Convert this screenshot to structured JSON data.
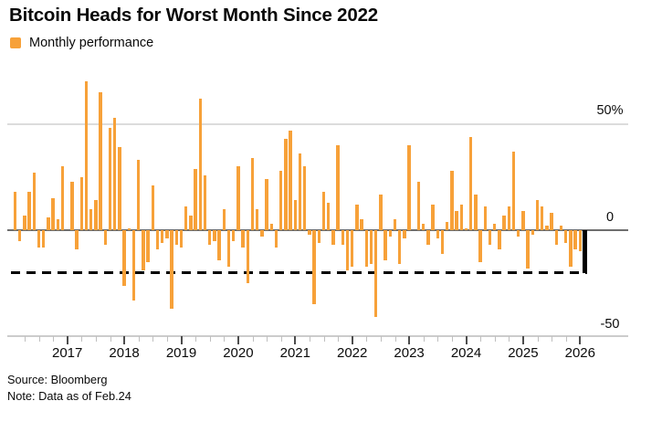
{
  "header": {
    "title": "Bitcoin Heads for Worst Month Since 2022"
  },
  "legend": {
    "label": "Monthly performance",
    "swatch_color": "#F7A139"
  },
  "footer": {
    "source": "Source: Bloomberg",
    "note": "Note: Data as of Feb.24"
  },
  "colors": {
    "bar": "#F7A139",
    "highlight_bar": "#000000",
    "zero_line": "#6e6e6e",
    "gridline": "#dcdcdc",
    "axis_line": "#cccccc",
    "dashed_line": "#000000"
  },
  "chart_data": {
    "type": "bar",
    "title": "Bitcoin Heads for Worst Month Since 2022",
    "legend": "Monthly performance",
    "unit": "percent",
    "ylim": [
      -50,
      72
    ],
    "grid": "horizontal-sparse",
    "legend_position": "top-left",
    "yticks": [
      {
        "label": "50%",
        "value": 50
      },
      {
        "label": "0",
        "value": 0
      },
      {
        "label": "-50",
        "value": -50
      }
    ],
    "dashed_reference_value": -20,
    "x_year_labels": [
      "2017",
      "2018",
      "2019",
      "2020",
      "2021",
      "2022",
      "2023",
      "2024",
      "2025",
      "2026"
    ],
    "series": [
      {
        "name": "Monthly performance",
        "color": "#F7A139",
        "start_month": "2016-02",
        "end_month": "2026-02",
        "values": [
          18,
          -5,
          7,
          18,
          27,
          -8,
          -8,
          6,
          15,
          5,
          30,
          0,
          23,
          -9,
          25,
          70,
          10,
          14,
          65,
          -7,
          48,
          53,
          39,
          -26,
          1,
          -33,
          33,
          -19,
          -15,
          21,
          -9,
          -6,
          -4,
          -37,
          -7,
          -8,
          11,
          7,
          29,
          62,
          26,
          -7,
          -5,
          -14,
          10,
          -17,
          -5,
          30,
          -8,
          -25,
          34,
          10,
          -3,
          24,
          3,
          -8,
          28,
          43,
          47,
          14,
          36,
          30,
          -2,
          -35,
          -6,
          18,
          13,
          -7,
          40,
          -7,
          -19,
          -17,
          12,
          5,
          -17,
          -16,
          -41,
          17,
          -14,
          -3,
          5,
          -16,
          -4,
          40,
          0,
          23,
          3,
          -7,
          12,
          -4,
          -11,
          4,
          28,
          9,
          12,
          1,
          44,
          17,
          -15,
          11,
          -7,
          3,
          -9,
          7,
          11,
          37,
          -3,
          9,
          -18,
          -2,
          14,
          11,
          2,
          8,
          -7,
          2,
          -6,
          -17,
          -9,
          -10,
          -20
        ]
      }
    ],
    "highlight_last_bar": {
      "month": "2026-02",
      "value": -20,
      "color": "#000000"
    }
  }
}
